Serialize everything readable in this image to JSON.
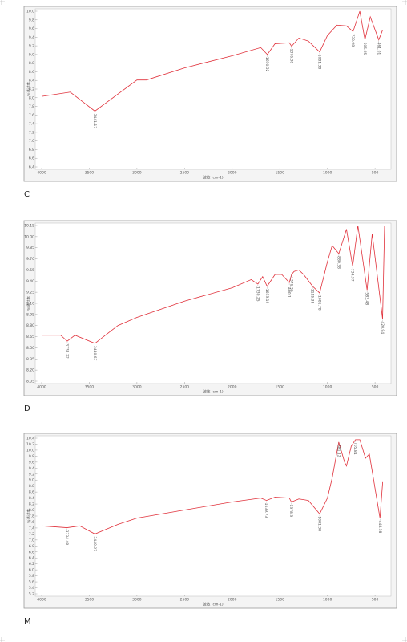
{
  "chart_data": [
    {
      "type": "line",
      "caption": "C",
      "x_label": "波数 (cm-1)",
      "y_label": "%透过率",
      "xlim": [
        4000,
        400
      ],
      "xticks": [
        4000,
        3500,
        3000,
        2500,
        2000,
        1500,
        1000,
        500
      ],
      "ylim": [
        6.4,
        10.0
      ],
      "yticks": [
        {
          "value": 10.0,
          "label": "10.0"
        },
        9.8,
        9.6,
        9.4,
        9.2,
        {
          "value": 9.0,
          "label": "9.0"
        },
        8.8,
        8.6,
        8.4,
        8.2,
        {
          "value": 8.0,
          "label": "8.0"
        },
        7.8,
        7.6,
        7.4,
        7.2,
        {
          "value": 7.0,
          "label": "7.0"
        },
        6.8,
        6.6,
        6.4
      ],
      "series": [
        {
          "color": "#e0303a",
          "x": [
            4000,
            3700,
            3441.17,
            3000,
            2900,
            2500,
            2000,
            1700,
            1630.52,
            1550,
            1400,
            1376.38,
            1300,
            1200,
            1081.38,
            1000,
            900,
            800,
            730.98,
            660,
            605.95,
            550,
            461.01,
            420
          ],
          "values": [
            8.03,
            8.13,
            7.69,
            8.41,
            8.41,
            8.69,
            8.97,
            9.16,
            9.0,
            9.25,
            9.27,
            9.19,
            9.38,
            9.31,
            9.06,
            9.44,
            9.68,
            9.66,
            9.53,
            10.0,
            9.34,
            9.87,
            9.34,
            9.57
          ]
        }
      ],
      "annotations": [
        {
          "x": 3441.17,
          "y": 7.69
        },
        {
          "x": 1630.52,
          "y": 9.0
        },
        {
          "x": 1376.38,
          "y": 9.19
        },
        {
          "x": 1081.38,
          "y": 9.06
        },
        {
          "x": 730.98,
          "y": 9.53
        },
        {
          "x": 605.95,
          "y": 9.34
        },
        {
          "x": 461.01,
          "y": 9.34
        }
      ]
    },
    {
      "type": "line",
      "caption": "D",
      "x_label": "波数 (cm-1)",
      "y_label": "%透过率",
      "xlim": [
        4000,
        400
      ],
      "xticks": [
        4000,
        3500,
        3000,
        2500,
        2000,
        1500,
        1000,
        500
      ],
      "ylim": [
        8.05,
        10.15
      ],
      "yticks": [
        10.15,
        {
          "value": 10.0,
          "label": "10.00"
        },
        9.85,
        {
          "value": 9.7,
          "label": "9.70"
        },
        9.55,
        {
          "value": 9.4,
          "label": "9.40"
        },
        9.25,
        {
          "value": 9.1,
          "label": "9.10"
        },
        8.95,
        {
          "value": 8.8,
          "label": "8.80"
        },
        8.65,
        {
          "value": 8.5,
          "label": "8.50"
        },
        8.35,
        {
          "value": 8.2,
          "label": "8.20"
        },
        8.05
      ],
      "series": [
        {
          "color": "#e0303a",
          "x": [
            4000,
            3800,
            3731.22,
            3650,
            3440.67,
            3200,
            3000,
            2500,
            2000,
            1800,
            1730.25,
            1680,
            1633.19,
            1550,
            1480,
            1400.1,
            1376.36,
            1350,
            1300,
            1250,
            1155.38,
            1081.78,
            1000,
            950,
            880.38,
            800,
            734.97,
            680,
            583.48,
            530,
            420.94,
            400
          ],
          "values": [
            8.67,
            8.67,
            8.59,
            8.67,
            8.56,
            8.8,
            8.91,
            9.13,
            9.31,
            9.42,
            9.36,
            9.46,
            9.33,
            9.49,
            9.49,
            9.38,
            9.49,
            9.53,
            9.55,
            9.49,
            9.33,
            9.24,
            9.66,
            9.88,
            9.77,
            10.1,
            9.6,
            10.15,
            9.28,
            10.04,
            8.89,
            10.15
          ]
        }
      ],
      "annotations": [
        {
          "x": 3731.22,
          "y": 8.59
        },
        {
          "x": 3440.67,
          "y": 8.56
        },
        {
          "x": 1730.25,
          "y": 9.36
        },
        {
          "x": 1633.19,
          "y": 9.33
        },
        {
          "x": 1400.1,
          "y": 9.38
        },
        {
          "x": 1376.36,
          "y": 9.49
        },
        {
          "x": 1155.38,
          "y": 9.33
        },
        {
          "x": 1081.78,
          "y": 9.24
        },
        {
          "x": 880.38,
          "y": 9.77
        },
        {
          "x": 734.97,
          "y": 9.6
        },
        {
          "x": 583.48,
          "y": 9.28
        },
        {
          "x": 420.94,
          "y": 8.89
        }
      ]
    },
    {
      "type": "line",
      "caption": "M",
      "x_label": "波数 (cm-1)",
      "y_label": "%透过率",
      "xlim": [
        4000,
        400
      ],
      "xticks": [
        4000,
        3500,
        3000,
        2500,
        2000,
        1500,
        1000,
        500
      ],
      "ylim": [
        5.2,
        10.4
      ],
      "yticks": [
        10.4,
        10.2,
        {
          "value": 10.0,
          "label": "10.0"
        },
        9.8,
        9.6,
        9.4,
        9.2,
        {
          "value": 9.0,
          "label": "9.0"
        },
        8.8,
        8.6,
        8.4,
        8.2,
        {
          "value": 8.0,
          "label": "8.0"
        },
        7.8,
        7.6,
        7.4,
        7.2,
        {
          "value": 7.0,
          "label": "7.0"
        },
        6.8,
        6.6,
        6.4,
        6.2,
        {
          "value": 6.0,
          "label": "6.0"
        },
        5.8,
        5.6,
        5.4,
        5.2
      ],
      "series": [
        {
          "color": "#e0303a",
          "x": [
            4000,
            3734.48,
            3600,
            3440.97,
            3200,
            3000,
            2500,
            2000,
            1700,
            1639.73,
            1550,
            1400,
            1378.3,
            1300,
            1200,
            1081.38,
            1000,
            950,
            881.12,
            820,
            800,
            750,
            705.81,
            660,
            600,
            560,
            448.38,
            420
          ],
          "values": [
            7.47,
            7.41,
            7.47,
            7.2,
            7.52,
            7.73,
            8.0,
            8.27,
            8.4,
            8.32,
            8.43,
            8.4,
            8.27,
            8.37,
            8.32,
            7.87,
            8.4,
            9.07,
            10.27,
            9.6,
            9.47,
            10.13,
            10.35,
            10.35,
            9.73,
            9.87,
            7.73,
            8.93
          ]
        }
      ],
      "annotations": [
        {
          "x": 3734.48,
          "y": 7.41
        },
        {
          "x": 3440.97,
          "y": 7.2
        },
        {
          "x": 1639.73,
          "y": 8.32
        },
        {
          "x": 1378.3,
          "y": 8.27
        },
        {
          "x": 1081.38,
          "y": 7.87
        },
        {
          "x": 881.12,
          "y": 10.27
        },
        {
          "x": 705.81,
          "y": 10.35
        },
        {
          "x": 448.38,
          "y": 7.73
        }
      ]
    }
  ]
}
